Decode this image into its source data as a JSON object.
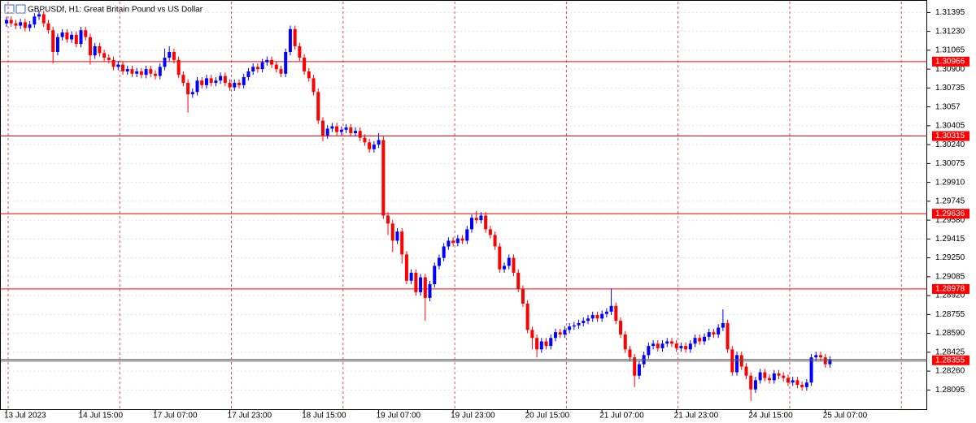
{
  "chart_data": {
    "type": "candlestick",
    "title": "GBPUSDf, H1:  Great Britain Pound vs US Dollar",
    "categories": [
      "13 Jul 2023",
      null,
      null,
      null,
      null,
      null,
      null,
      null,
      null,
      null,
      null,
      null,
      null,
      null,
      null,
      null,
      "14 Jul 15:00",
      null,
      null,
      null,
      null,
      null,
      null,
      null,
      null,
      null,
      null,
      null,
      null,
      null,
      null,
      null,
      "17 Jul 07:00",
      null,
      null,
      null,
      null,
      null,
      null,
      null,
      null,
      null,
      null,
      null,
      null,
      null,
      null,
      null,
      "17 Jul 23:00",
      null,
      null,
      null,
      null,
      null,
      null,
      null,
      null,
      null,
      null,
      null,
      null,
      null,
      null,
      null,
      "18 Jul 15:00",
      null,
      null,
      null,
      null,
      null,
      null,
      null,
      null,
      null,
      null,
      null,
      null,
      null,
      null,
      null,
      "19 Jul 07:00",
      null,
      null,
      null,
      null,
      null,
      null,
      null,
      null,
      null,
      null,
      null,
      null,
      null,
      null,
      null,
      "19 Jul 23:00",
      null,
      null,
      null,
      null,
      null,
      null,
      null,
      null,
      null,
      null,
      null,
      null,
      null,
      null,
      null,
      "20 Jul 15:00",
      null,
      null,
      null,
      null,
      null,
      null,
      null,
      null,
      null,
      null,
      null,
      null,
      null,
      null,
      null,
      "21 Jul 07:00",
      null,
      null,
      null,
      null,
      null,
      null,
      null,
      null,
      null,
      null,
      null,
      null,
      null,
      null,
      null,
      "21 Jul 23:00",
      null,
      null,
      null,
      null,
      null,
      null,
      null,
      null,
      null,
      null,
      null,
      null,
      null,
      null,
      null,
      "24 Jul 15:00",
      null,
      null,
      null,
      null,
      null,
      null,
      null,
      null,
      null,
      null,
      null,
      null,
      null,
      null,
      null,
      "25 Jul 07:00",
      null
    ],
    "open": [
      1.313,
      1.3133,
      1.313,
      1.3128,
      1.3131,
      1.3126,
      1.3129,
      1.3136,
      1.3138,
      1.313,
      1.3124,
      1.3105,
      1.3118,
      1.3122,
      1.3116,
      1.312,
      1.3112,
      1.3124,
      1.3118,
      1.3102,
      1.311,
      1.3104,
      1.31,
      1.3098,
      1.3092,
      1.3094,
      1.3088,
      1.309,
      1.3086,
      1.3088,
      1.3085,
      1.309,
      1.3086,
      1.3084,
      1.3092,
      1.31,
      1.3105,
      1.3098,
      1.3085,
      1.3078,
      1.3068,
      1.307,
      1.308,
      1.3076,
      1.3082,
      1.3078,
      1.308,
      1.3084,
      1.3078,
      1.3074,
      1.3078,
      1.3076,
      1.3083,
      1.3088,
      1.3092,
      1.309,
      1.3096,
      1.3098,
      1.3094,
      1.309,
      1.3086,
      1.3105,
      1.3125,
      1.311,
      1.31,
      1.3088,
      1.3082,
      1.307,
      1.3045,
      1.3032,
      1.3038,
      1.304,
      1.3035,
      1.3037,
      1.3039,
      1.3034,
      1.3036,
      1.303,
      1.3026,
      1.302,
      1.3024,
      1.3028,
      1.2962,
      1.2955,
      1.294,
      1.2948,
      1.2928,
      1.2905,
      1.2912,
      1.2895,
      1.2908,
      1.289,
      1.2902,
      1.2918,
      1.2925,
      1.2935,
      1.294,
      1.2938,
      1.2942,
      1.294,
      1.295,
      1.296,
      1.2958,
      1.2962,
      1.295,
      1.2945,
      1.2935,
      1.2915,
      1.2918,
      1.2925,
      1.2912,
      1.2898,
      1.2885,
      1.2862,
      1.2855,
      1.2845,
      1.2852,
      1.2848,
      1.2855,
      1.286,
      1.2858,
      1.2862,
      1.2865,
      1.2866,
      1.2868,
      1.287,
      1.2872,
      1.2875,
      1.2872,
      1.2876,
      1.2878,
      1.2883,
      1.287,
      1.2858,
      1.2845,
      1.2838,
      1.2822,
      1.2832,
      1.284,
      1.2848,
      1.285,
      1.2846,
      1.285,
      1.2852,
      1.285,
      1.2846,
      1.2848,
      1.2845,
      1.285,
      1.2855,
      1.2852,
      1.2856,
      1.286,
      1.2858,
      1.2864,
      1.2868,
      1.2845,
      1.2825,
      1.284,
      1.283,
      1.2822,
      1.281,
      1.2818,
      1.2825,
      1.282,
      1.2818,
      1.2824,
      1.2822,
      1.282,
      1.2816,
      1.2818,
      1.2814,
      1.2812,
      1.2816,
      1.2838,
      1.284,
      1.2838,
      1.2832
    ],
    "high": [
      1.3136,
      1.3136,
      1.3133,
      1.3134,
      1.3134,
      1.3132,
      1.3139,
      1.3141,
      1.3141,
      1.3133,
      1.3127,
      1.3121,
      1.3125,
      1.3125,
      1.3123,
      1.3123,
      1.3127,
      1.3127,
      1.3121,
      1.3113,
      1.3113,
      1.3107,
      1.3103,
      1.3101,
      1.3097,
      1.3097,
      1.3093,
      1.3093,
      1.3091,
      1.3091,
      1.3093,
      1.3093,
      1.3089,
      1.3095,
      1.3108,
      1.311,
      1.3108,
      1.3101,
      1.3088,
      1.3081,
      1.3073,
      1.3083,
      1.3083,
      1.3085,
      1.3085,
      1.3083,
      1.3087,
      1.3087,
      1.3081,
      1.3081,
      1.3081,
      1.3086,
      1.3091,
      1.3095,
      1.3095,
      1.3099,
      1.3101,
      1.3101,
      1.3097,
      1.3093,
      1.3108,
      1.3128,
      1.3128,
      1.3113,
      1.3103,
      1.3091,
      1.3085,
      1.3073,
      1.3048,
      1.3041,
      1.3043,
      1.3043,
      1.304,
      1.3042,
      1.3042,
      1.3039,
      1.3039,
      1.3033,
      1.3029,
      1.3027,
      1.3034,
      1.3031,
      1.2965,
      1.2958,
      1.2951,
      1.2951,
      1.2931,
      1.2915,
      1.2915,
      1.2911,
      1.2911,
      1.2905,
      1.2921,
      1.2928,
      1.2938,
      1.2943,
      1.2943,
      1.2945,
      1.2945,
      1.2953,
      1.2963,
      1.2966,
      1.2965,
      1.2965,
      1.2953,
      1.2948,
      1.2938,
      1.2921,
      1.2928,
      1.2928,
      1.2915,
      1.2901,
      1.2888,
      1.2865,
      1.2858,
      1.2855,
      1.2855,
      1.2858,
      1.2863,
      1.2863,
      1.2865,
      1.2868,
      1.2869,
      1.2871,
      1.2873,
      1.2875,
      1.2878,
      1.2878,
      1.2879,
      1.2881,
      1.2898,
      1.2886,
      1.2873,
      1.2861,
      1.2848,
      1.2841,
      1.2835,
      1.2843,
      1.2851,
      1.2853,
      1.2853,
      1.2853,
      1.2855,
      1.2855,
      1.2853,
      1.2851,
      1.2851,
      1.2853,
      1.2858,
      1.2858,
      1.2859,
      1.2863,
      1.2863,
      1.2867,
      1.288,
      1.2871,
      1.2848,
      1.2843,
      1.2843,
      1.2833,
      1.2825,
      1.2821,
      1.2828,
      1.2828,
      1.2823,
      1.2827,
      1.2827,
      1.2825,
      1.2823,
      1.2821,
      1.2821,
      1.2817,
      1.2819,
      1.2841,
      1.2843,
      1.2843,
      1.2841,
      1.2839
    ],
    "low": [
      1.3127,
      1.3127,
      1.3125,
      1.3125,
      1.3123,
      1.3123,
      1.3126,
      1.3133,
      1.3127,
      1.3121,
      1.3095,
      1.3102,
      1.3115,
      1.3113,
      1.3113,
      1.3109,
      1.3109,
      1.3115,
      1.3094,
      1.3099,
      1.3101,
      1.3097,
      1.3095,
      1.3089,
      1.3089,
      1.3085,
      1.3085,
      1.3083,
      1.3083,
      1.3082,
      1.3082,
      1.3083,
      1.3081,
      1.3081,
      1.3089,
      1.3097,
      1.3095,
      1.3082,
      1.3075,
      1.3052,
      1.3065,
      1.3067,
      1.3073,
      1.3073,
      1.3075,
      1.3075,
      1.3077,
      1.3075,
      1.3071,
      1.3071,
      1.3073,
      1.3073,
      1.308,
      1.3085,
      1.3087,
      1.3087,
      1.3093,
      1.3091,
      1.3087,
      1.3083,
      1.3083,
      1.3102,
      1.3107,
      1.3097,
      1.3085,
      1.3079,
      1.3067,
      1.3042,
      1.3027,
      1.3029,
      1.3035,
      1.3032,
      1.3032,
      1.3034,
      1.3031,
      1.3031,
      1.3027,
      1.3023,
      1.3017,
      1.3017,
      1.3021,
      1.2959,
      1.2945,
      1.293,
      1.2937,
      1.292,
      1.2902,
      1.2902,
      1.2892,
      1.2892,
      1.287,
      1.2887,
      1.2899,
      1.2915,
      1.2922,
      1.2932,
      1.2935,
      1.2935,
      1.2937,
      1.2937,
      1.2947,
      1.2955,
      1.2955,
      1.2947,
      1.2942,
      1.2932,
      1.2912,
      1.2912,
      1.2915,
      1.2909,
      1.2895,
      1.2882,
      1.2859,
      1.2845,
      1.2838,
      1.2842,
      1.2845,
      1.2845,
      1.2852,
      1.2855,
      1.2855,
      1.2859,
      1.2862,
      1.2863,
      1.2865,
      1.2867,
      1.2869,
      1.2869,
      1.2869,
      1.2873,
      1.2875,
      1.2867,
      1.2855,
      1.2842,
      1.2835,
      1.2812,
      1.2819,
      1.2829,
      1.2837,
      1.2845,
      1.2843,
      1.2843,
      1.2847,
      1.2847,
      1.2843,
      1.2843,
      1.2842,
      1.2842,
      1.2847,
      1.2849,
      1.2849,
      1.2853,
      1.2855,
      1.2855,
      1.2861,
      1.2842,
      1.2822,
      1.2822,
      1.2827,
      1.2819,
      1.28,
      1.2807,
      1.2815,
      1.2817,
      1.2815,
      1.2815,
      1.2819,
      1.2817,
      1.2813,
      1.2813,
      1.2811,
      1.2809,
      1.2809,
      1.2813,
      1.2835,
      1.2835,
      1.2829,
      1.2829
    ],
    "close": [
      1.3133,
      1.313,
      1.3128,
      1.3131,
      1.3126,
      1.3129,
      1.3136,
      1.3138,
      1.313,
      1.3124,
      1.3105,
      1.3118,
      1.3122,
      1.3116,
      1.312,
      1.3112,
      1.3124,
      1.3118,
      1.3102,
      1.311,
      1.3104,
      1.31,
      1.3098,
      1.3092,
      1.3094,
      1.3088,
      1.309,
      1.3086,
      1.3088,
      1.3085,
      1.309,
      1.3086,
      1.3084,
      1.3092,
      1.31,
      1.3105,
      1.3098,
      1.3085,
      1.3078,
      1.3068,
      1.307,
      1.308,
      1.3076,
      1.3082,
      1.3078,
      1.308,
      1.3084,
      1.3078,
      1.3074,
      1.3078,
      1.3076,
      1.3083,
      1.3088,
      1.3092,
      1.309,
      1.3096,
      1.3098,
      1.3094,
      1.309,
      1.3086,
      1.3105,
      1.3125,
      1.311,
      1.31,
      1.3088,
      1.3082,
      1.307,
      1.3045,
      1.3032,
      1.3038,
      1.304,
      1.3035,
      1.3037,
      1.3039,
      1.3034,
      1.3036,
      1.303,
      1.3026,
      1.302,
      1.3024,
      1.3028,
      1.2962,
      1.2955,
      1.294,
      1.2948,
      1.2928,
      1.2905,
      1.2912,
      1.2895,
      1.2908,
      1.289,
      1.2902,
      1.2918,
      1.2925,
      1.2935,
      1.294,
      1.2938,
      1.2942,
      1.294,
      1.295,
      1.296,
      1.2958,
      1.2962,
      1.295,
      1.2945,
      1.2935,
      1.2915,
      1.2918,
      1.2925,
      1.2912,
      1.2898,
      1.2885,
      1.2862,
      1.2855,
      1.2845,
      1.2852,
      1.2848,
      1.2855,
      1.286,
      1.2858,
      1.2862,
      1.2865,
      1.2866,
      1.2868,
      1.287,
      1.2872,
      1.2875,
      1.2872,
      1.2876,
      1.2878,
      1.2883,
      1.287,
      1.2858,
      1.2845,
      1.2838,
      1.2822,
      1.2832,
      1.284,
      1.2848,
      1.285,
      1.2846,
      1.285,
      1.2852,
      1.285,
      1.2846,
      1.2848,
      1.2845,
      1.285,
      1.2855,
      1.2852,
      1.2856,
      1.286,
      1.2858,
      1.2864,
      1.2868,
      1.2845,
      1.2825,
      1.284,
      1.283,
      1.2822,
      1.281,
      1.2818,
      1.2825,
      1.282,
      1.2818,
      1.2824,
      1.2822,
      1.282,
      1.2816,
      1.2818,
      1.2814,
      1.2812,
      1.2816,
      1.2838,
      1.284,
      1.2838,
      1.2832,
      1.2836
    ],
    "up_color": "#0000ff",
    "down_color": "#ff0000",
    "ylim": [
      1.2792,
      1.3149
    ],
    "yticks": [
      1.31395,
      {
        "value": 1.3123,
        "label": "1.31230"
      },
      1.31065,
      {
        "value": 1.309,
        "label": "1.30900"
      },
      1.30735,
      1.3057,
      1.30405,
      {
        "value": 1.3024,
        "label": "1.30240"
      },
      1.30075,
      {
        "value": 1.2991,
        "label": "1.29910"
      },
      1.29745,
      {
        "value": 1.2958,
        "label": "1.29580"
      },
      1.29415,
      {
        "value": 1.2925,
        "label": "1.29250"
      },
      1.29085,
      {
        "value": 1.2892,
        "label": "1.28920"
      },
      1.28755,
      {
        "value": 1.2859,
        "label": "1.28590"
      },
      1.28425,
      {
        "value": 1.2826,
        "label": "1.28260"
      },
      1.28095
    ],
    "levels": [
      1.30966,
      1.30315,
      1.29636,
      1.28978
    ],
    "level_color": "#ff0000",
    "bid": 1.28355,
    "grid": true
  }
}
